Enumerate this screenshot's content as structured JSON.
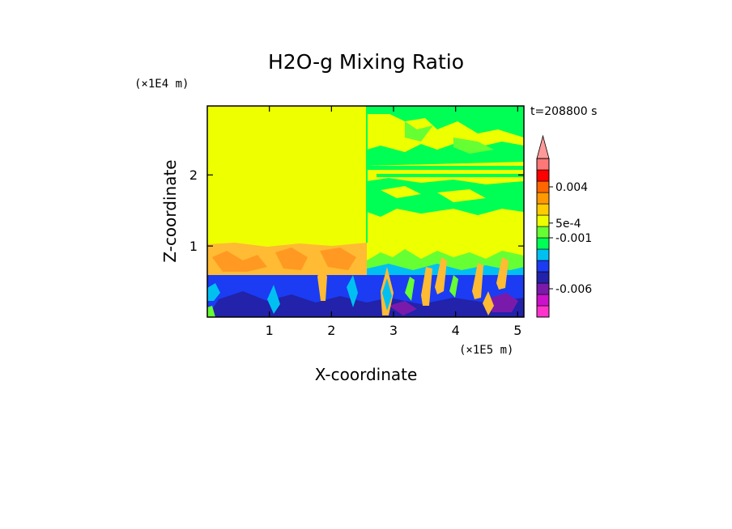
{
  "chart_data": {
    "type": "heatmap",
    "title": "H2O-g Mixing Ratio",
    "xlabel": "X-coordinate",
    "ylabel": "Z-coordinate",
    "x_scale_label": "(×1E5 m)",
    "y_scale_label": "(×1E4 m)",
    "time_label": "t=208800 s",
    "xlim": [
      0,
      5.1
    ],
    "ylim": [
      0,
      2.97
    ],
    "x_ticks": [
      "1",
      "2",
      "3",
      "4",
      "5"
    ],
    "y_ticks": [
      "1",
      "2"
    ],
    "x_tick_values": [
      1,
      2,
      3,
      4,
      5
    ],
    "y_tick_values": [
      1,
      2
    ],
    "colorbar": {
      "colors": [
        "#ff33cc",
        "#cc11cc",
        "#7a1aaa",
        "#2222aa",
        "#1b3cf2",
        "#00c0f2",
        "#00ff55",
        "#66ff33",
        "#eeff00",
        "#ffcc00",
        "#ff9900",
        "#ff6600",
        "#ff0000",
        "#ff7777"
      ],
      "extend_color": "#ff9999",
      "labels": [
        "-0.006",
        "-0.001",
        "5e-4",
        "0.004"
      ],
      "label_positions": [
        2.5,
        7,
        8.3,
        11.5
      ]
    }
  },
  "colors": {
    "background": "#ffffff",
    "yellow": "#eeff00",
    "green": "#00ff55",
    "light_green": "#66ff33",
    "orange": "#ffbb33",
    "dark_orange": "#ff9922",
    "cyan": "#00c0f2",
    "blue": "#1b3cf2",
    "dark_blue": "#2222aa",
    "purple": "#7a1aaa"
  }
}
